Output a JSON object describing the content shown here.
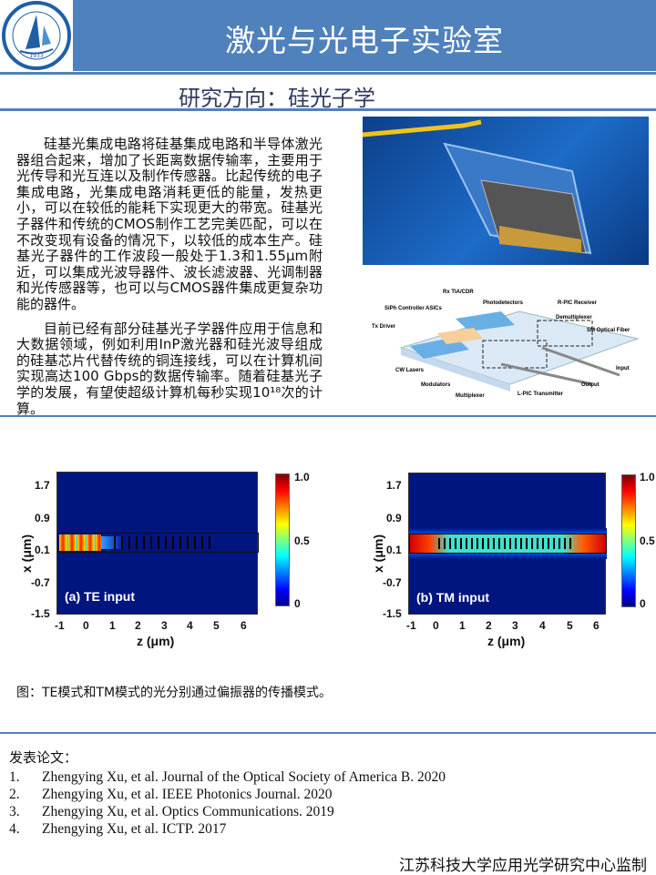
{
  "header": {
    "title": "激光与光电子实验室",
    "logo_text": "江苏科技大学",
    "logo_year": "1933",
    "subtitle": "研究方向：硅光子学"
  },
  "intro": {
    "paragraphs": [
      "硅基光集成电路将硅基集成电路和半导体激光器组合起来，增加了长距离数据传输率，主要用于光传导和光互连以及制作传感器。比起传统的电子集成电路，光集成电路消耗更低的能量，发热更小，可以在较低的能耗下实现更大的带宽。硅基光子器件和传统的CMOS制作工艺完美匹配，可以在不改变现有设备的情况下，以较低的成本生产。硅基光子器件的工作波段一般处于1.3和1.55μm附近，可以集成光波导器件、波长滤波器、光调制器和光传感器等，也可以与CMOS器件集成更复杂功能的器件。",
      "目前已经有部分硅基光子学器件应用于信息和大数据领域，例如利用InP激光器和硅光波导组成的硅基芯片代替传统的铜连接线，可以在计算机间实现高达100 Gbps的数据传输率。随着硅基光子学的发展，有望使超级计算机每秒实现10¹⁸次的计算。"
    ]
  },
  "diagram": {
    "labels": [
      "Rx TIA/CDR",
      "SiPh Controller ASICs",
      "Photodetectors",
      "R-PIC Receiver",
      "Demultiplexer",
      "Tx Driver",
      "SM Optical Fiber",
      "Input",
      "CW Lasers",
      "Output",
      "Modulators",
      "Multiplexer",
      "L-PIC Transmitter"
    ]
  },
  "figures": [
    {
      "panel": "(a) TE input",
      "xlabel": "z (μm)",
      "ylabel": "x (μm)",
      "xticks": [
        "-1",
        "0",
        "1",
        "2",
        "3",
        "4",
        "5",
        "6"
      ],
      "yticks": [
        "1.7",
        "0.9",
        "0.1",
        "-0.7",
        "-1.5"
      ],
      "colorbar": [
        "1.0",
        "0.5",
        "0"
      ]
    },
    {
      "panel": "(b) TM input",
      "xlabel": "z (μm)",
      "ylabel": "x (μm)",
      "xticks": [
        "-1",
        "0",
        "1",
        "2",
        "3",
        "4",
        "5",
        "6"
      ],
      "yticks": [
        "1.7",
        "0.9",
        "0.1",
        "-0.7",
        "-1.5"
      ],
      "colorbar": [
        "1.0",
        "0.5",
        "0"
      ]
    }
  ],
  "caption": "图：TE模式和TM模式的光分别通过偏振器的传播模式。",
  "publications": {
    "heading": "发表论文：",
    "items": [
      {
        "n": "1.",
        "text": "Zhengying Xu, et al. Journal of the Optical Society of America B. 2020"
      },
      {
        "n": "2.",
        "text": "Zhengying Xu, et al. IEEE Photonics Journal. 2020"
      },
      {
        "n": "3.",
        "text": "Zhengying Xu, et al. Optics Communications. 2019"
      },
      {
        "n": "4.",
        "text": "Zhengying Xu, et al. ICTP. 2017"
      }
    ]
  },
  "footer": "江苏科技大学应用光学研究中心监制",
  "colors": {
    "brand": "#4f81bd"
  }
}
